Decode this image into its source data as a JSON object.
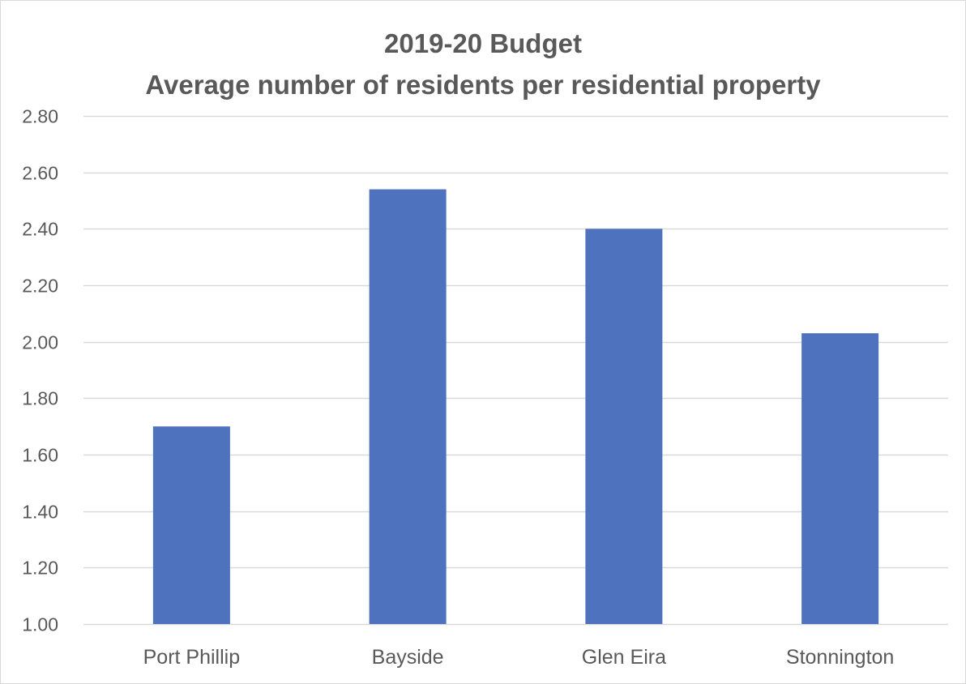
{
  "chart_data": {
    "type": "bar",
    "title": "2019-20 Budget",
    "subtitle": "Average number of residents per residential property",
    "categories": [
      "Port Phillip",
      "Bayside",
      "Glen Eira",
      "Stonnington"
    ],
    "values": [
      1.7,
      2.54,
      2.4,
      2.03
    ],
    "yticks": [
      "1.00",
      "1.20",
      "1.40",
      "1.60",
      "1.80",
      "2.00",
      "2.20",
      "2.40",
      "2.60",
      "2.80"
    ],
    "ylim": [
      1.0,
      2.8
    ],
    "xlabel": "",
    "ylabel": "",
    "grid": true,
    "legend": "none",
    "colors": {
      "bar": "#4e72be",
      "grid": "#d9d9d9",
      "text": "#595959"
    }
  }
}
